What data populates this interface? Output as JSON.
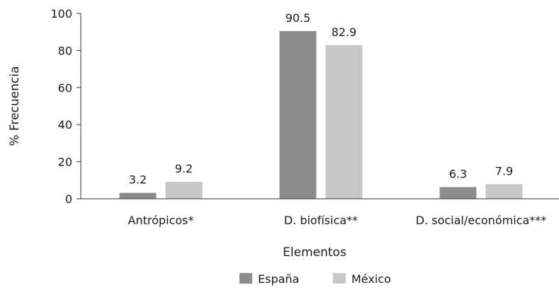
{
  "chart_data": {
    "type": "bar",
    "categories": [
      "Antrópicos*",
      "D. biofísica**",
      "D. social/económica***"
    ],
    "series": [
      {
        "name": "España",
        "values": [
          3.2,
          90.5,
          6.3
        ],
        "labels": [
          "3.2",
          "90.5",
          "6.3"
        ],
        "color": "#8c8c8e"
      },
      {
        "name": "México",
        "values": [
          9.2,
          82.9,
          7.9
        ],
        "labels": [
          "9.2",
          "82.9",
          "7.9"
        ],
        "color": "#c6c7c8"
      }
    ],
    "xlabel": "Elementos",
    "ylabel": "% Frecuencia",
    "ylim": [
      0,
      100
    ],
    "yticks": [
      "0",
      "20",
      "40",
      "60",
      "80",
      "100"
    ],
    "legend_position": "bottom-center",
    "grid": false
  }
}
